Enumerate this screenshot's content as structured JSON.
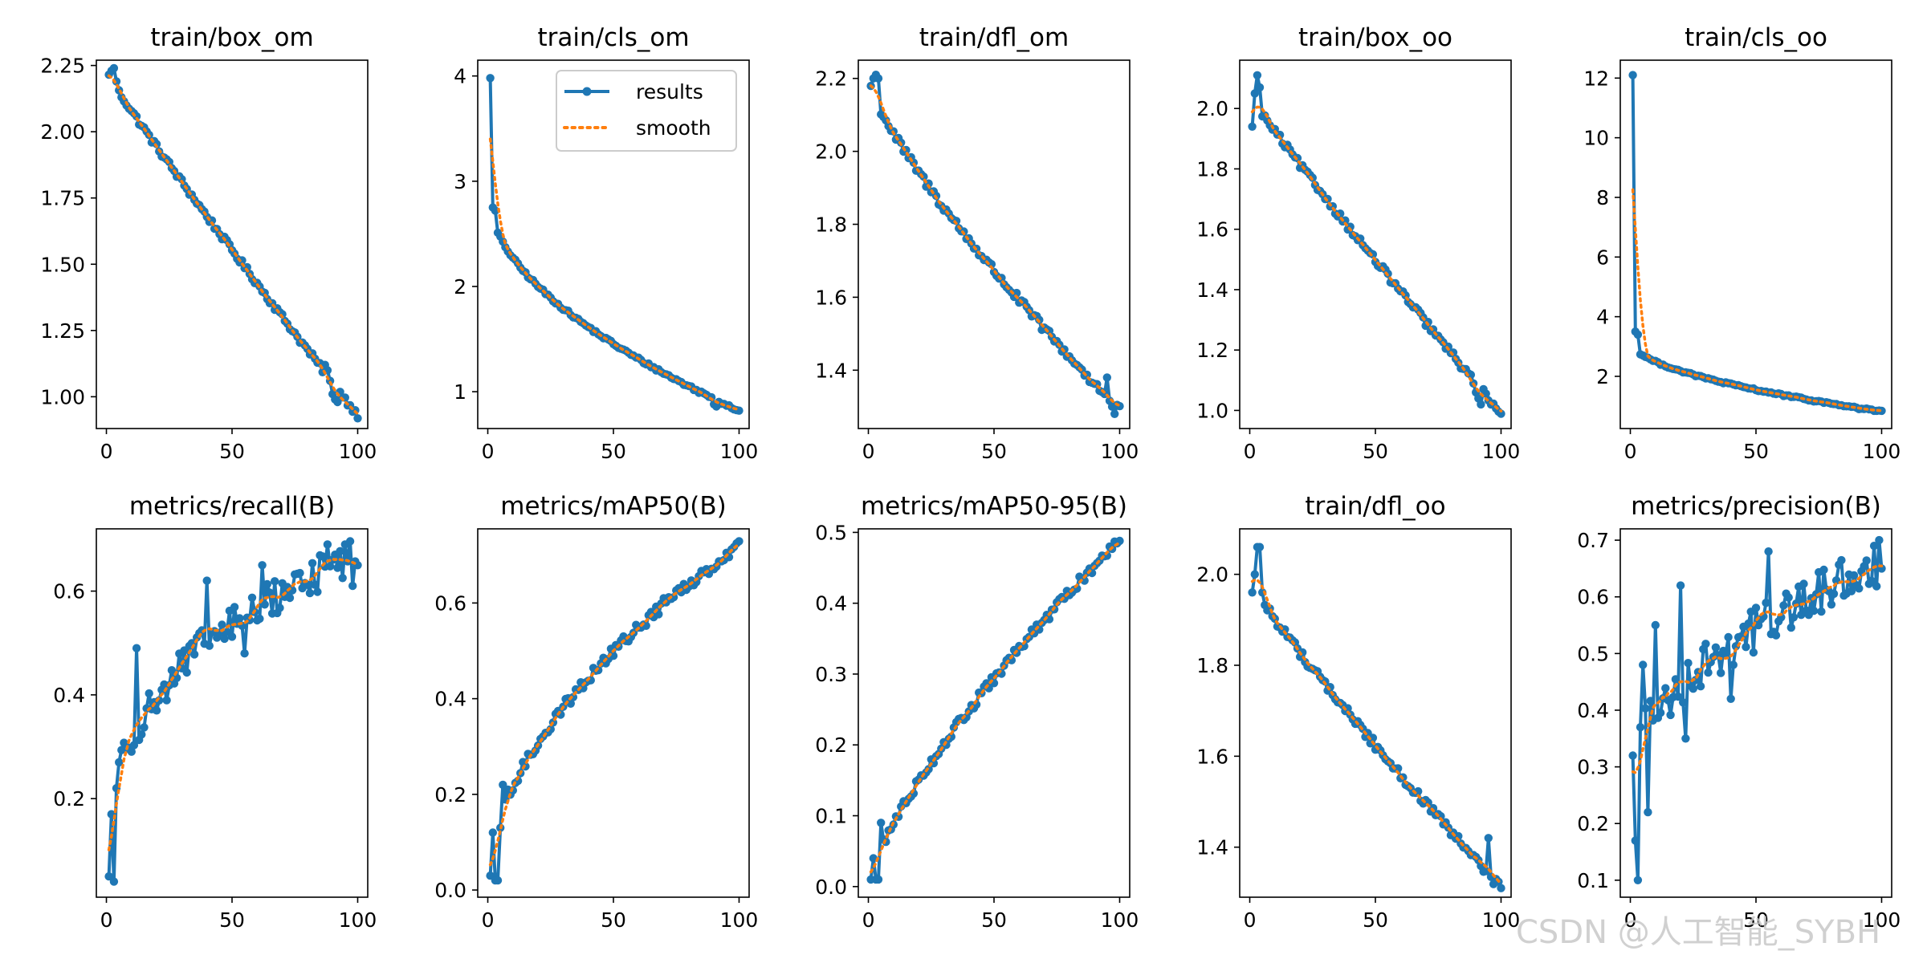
{
  "colors": {
    "results": "#1f77b4",
    "smooth": "#ff7f0e",
    "axes": "#000000",
    "background": "#ffffff"
  },
  "legend": {
    "results_label": "results",
    "smooth_label": "smooth",
    "placement": "upper-right of panel train/cls_om"
  },
  "watermark": "CSDN @人工智能_SYBH",
  "chart_data": [
    {
      "type": "line",
      "title": "train/box_om",
      "xlabel": "",
      "ylabel": "",
      "xlim": [
        -4,
        104
      ],
      "ylim": [
        0.88,
        2.27
      ],
      "xticks": [
        0,
        50,
        100
      ],
      "yticks": [
        1.0,
        1.25,
        1.5,
        1.75,
        2.0,
        2.25
      ],
      "ytick_labels": [
        "1.00",
        "1.25",
        "1.50",
        "1.75",
        "2.00",
        "2.25"
      ],
      "series": [
        {
          "name": "results",
          "gen": {
            "kind": "pow",
            "start": 2.21,
            "end": 0.93,
            "p": 0.95,
            "noise": 0.012,
            "bumps": [
              [
                2,
                2.23
              ],
              [
                3,
                2.24
              ],
              [
                4,
                2.19
              ],
              [
                87,
                1.12
              ],
              [
                88,
                1.1
              ],
              [
                89,
                1.06
              ],
              [
                90,
                1.01
              ],
              [
                91,
                0.99
              ],
              [
                92,
                0.98
              ]
            ]
          }
        }
      ]
    },
    {
      "type": "line",
      "title": "train/cls_om",
      "xlabel": "",
      "ylabel": "",
      "xlim": [
        -4,
        104
      ],
      "ylim": [
        0.65,
        4.15
      ],
      "xticks": [
        0,
        50,
        100
      ],
      "yticks": [
        1,
        2,
        3,
        4
      ],
      "ytick_labels": [
        "1",
        "2",
        "3",
        "4"
      ],
      "series": [
        {
          "name": "results",
          "gen": {
            "kind": "pow",
            "start": 2.8,
            "end": 0.82,
            "p": 0.55,
            "noise": 0.015,
            "bumps": [
              [
                1,
                3.98
              ],
              [
                2,
                2.75
              ],
              [
                3,
                2.72
              ],
              [
                90,
                0.88
              ],
              [
                91,
                0.86
              ]
            ]
          }
        }
      ]
    },
    {
      "type": "line",
      "title": "train/dfl_om",
      "xlabel": "",
      "ylabel": "",
      "xlim": [
        -4,
        104
      ],
      "ylim": [
        1.24,
        2.25
      ],
      "xticks": [
        0,
        50,
        100
      ],
      "yticks": [
        1.4,
        1.6,
        1.8,
        2.0,
        2.2
      ],
      "ytick_labels": [
        "1.4",
        "1.6",
        "1.8",
        "2.0",
        "2.2"
      ],
      "series": [
        {
          "name": "results",
          "gen": {
            "kind": "pow",
            "start": 2.18,
            "end": 1.29,
            "p": 0.8,
            "noise": 0.012,
            "bumps": [
              [
                2,
                2.2
              ],
              [
                3,
                2.21
              ],
              [
                4,
                2.2
              ],
              [
                95,
                1.38
              ],
              [
                97,
                1.3
              ],
              [
                98,
                1.28
              ]
            ]
          }
        }
      ]
    },
    {
      "type": "line",
      "title": "train/box_oo",
      "xlabel": "",
      "ylabel": "",
      "xlim": [
        -4,
        104
      ],
      "ylim": [
        0.94,
        2.16
      ],
      "xticks": [
        0,
        50,
        100
      ],
      "yticks": [
        1.0,
        1.2,
        1.4,
        1.6,
        1.8,
        2.0
      ],
      "ytick_labels": [
        "1.0",
        "1.2",
        "1.4",
        "1.6",
        "1.8",
        "2.0"
      ],
      "series": [
        {
          "name": "results",
          "gen": {
            "kind": "pow",
            "start": 2.03,
            "end": 0.99,
            "p": 0.95,
            "noise": 0.012,
            "bumps": [
              [
                1,
                1.94
              ],
              [
                2,
                2.05
              ],
              [
                3,
                2.11
              ],
              [
                4,
                2.07
              ],
              [
                90,
                1.06
              ],
              [
                91,
                1.04
              ],
              [
                92,
                1.02
              ]
            ]
          }
        }
      ]
    },
    {
      "type": "line",
      "title": "train/cls_oo",
      "xlabel": "",
      "ylabel": "",
      "xlim": [
        -4,
        104
      ],
      "ylim": [
        0.25,
        12.6
      ],
      "xticks": [
        0,
        50,
        100
      ],
      "yticks": [
        2,
        4,
        6,
        8,
        10,
        12
      ],
      "ytick_labels": [
        "2",
        "4",
        "6",
        "8",
        "10",
        "12"
      ],
      "series": [
        {
          "name": "results",
          "gen": {
            "kind": "pow",
            "start": 3.1,
            "end": 0.82,
            "p": 0.55,
            "noise": 0.03,
            "bumps": [
              [
                1,
                12.1
              ],
              [
                2,
                3.5
              ],
              [
                3,
                3.4
              ],
              [
                90,
                0.95
              ],
              [
                91,
                0.9
              ]
            ]
          }
        }
      ]
    },
    {
      "type": "line",
      "title": "metrics/recall(B)",
      "xlabel": "",
      "ylabel": "",
      "xlim": [
        -4,
        104
      ],
      "ylim": [
        0.01,
        0.72
      ],
      "xticks": [
        0,
        50,
        100
      ],
      "yticks": [
        0.2,
        0.4,
        0.6
      ],
      "ytick_labels": [
        "0.2",
        "0.4",
        "0.6"
      ],
      "series": [
        {
          "name": "results",
          "gen": {
            "kind": "rise",
            "start": 0.05,
            "end": 0.67,
            "p": 0.35,
            "noise": 0.035,
            "bumps": [
              [
                1,
                0.05
              ],
              [
                2,
                0.17
              ],
              [
                3,
                0.04
              ],
              [
                4,
                0.22
              ],
              [
                5,
                0.27
              ],
              [
                12,
                0.49
              ],
              [
                20,
                0.37
              ],
              [
                40,
                0.62
              ],
              [
                55,
                0.48
              ],
              [
                62,
                0.65
              ],
              [
                88,
                0.69
              ],
              [
                95,
                0.69
              ],
              [
                98,
                0.61
              ],
              [
                100,
                0.65
              ]
            ]
          }
        }
      ]
    },
    {
      "type": "line",
      "title": "metrics/mAP50(B)",
      "xlabel": "",
      "ylabel": "",
      "xlim": [
        -4,
        104
      ],
      "ylim": [
        -0.015,
        0.755
      ],
      "xticks": [
        0,
        50,
        100
      ],
      "yticks": [
        0.0,
        0.2,
        0.4,
        0.6
      ],
      "ytick_labels": [
        "0.0",
        "0.2",
        "0.4",
        "0.6"
      ],
      "series": [
        {
          "name": "results",
          "gen": {
            "kind": "rise",
            "start": 0.03,
            "end": 0.72,
            "p": 0.55,
            "noise": 0.012,
            "bumps": [
              [
                1,
                0.03
              ],
              [
                2,
                0.12
              ],
              [
                3,
                0.02
              ],
              [
                4,
                0.02
              ],
              [
                5,
                0.13
              ],
              [
                6,
                0.22
              ],
              [
                8,
                0.21
              ],
              [
                70,
                0.61
              ]
            ]
          }
        }
      ]
    },
    {
      "type": "line",
      "title": "metrics/mAP50-95(B)",
      "xlabel": "",
      "ylabel": "",
      "xlim": [
        -4,
        104
      ],
      "ylim": [
        -0.015,
        0.505
      ],
      "xticks": [
        0,
        50,
        100
      ],
      "yticks": [
        0.0,
        0.1,
        0.2,
        0.3,
        0.4,
        0.5
      ],
      "ytick_labels": [
        "0.0",
        "0.1",
        "0.2",
        "0.3",
        "0.4",
        "0.5"
      ],
      "series": [
        {
          "name": "results",
          "gen": {
            "kind": "rise",
            "start": 0.01,
            "end": 0.49,
            "p": 0.75,
            "noise": 0.007,
            "bumps": [
              [
                1,
                0.01
              ],
              [
                2,
                0.04
              ],
              [
                3,
                0.01
              ],
              [
                4,
                0.01
              ],
              [
                5,
                0.09
              ]
            ]
          }
        }
      ]
    },
    {
      "type": "line",
      "title": "train/dfl_oo",
      "xlabel": "",
      "ylabel": "",
      "xlim": [
        -4,
        104
      ],
      "ylim": [
        1.29,
        2.1
      ],
      "xticks": [
        0,
        50,
        100
      ],
      "yticks": [
        1.4,
        1.6,
        1.8,
        2.0
      ],
      "ytick_labels": [
        "1.4",
        "1.6",
        "1.8",
        "2.0"
      ],
      "series": [
        {
          "name": "results",
          "gen": {
            "kind": "pow",
            "start": 1.98,
            "end": 1.31,
            "p": 0.9,
            "noise": 0.01,
            "bumps": [
              [
                1,
                1.96
              ],
              [
                2,
                2.0
              ],
              [
                3,
                2.06
              ],
              [
                4,
                2.06
              ],
              [
                5,
                1.96
              ],
              [
                95,
                1.42
              ],
              [
                98,
                1.33
              ],
              [
                100,
                1.31
              ]
            ]
          }
        }
      ]
    },
    {
      "type": "line",
      "title": "metrics/precision(B)",
      "xlabel": "",
      "ylabel": "",
      "xlim": [
        -4,
        104
      ],
      "ylim": [
        0.07,
        0.72
      ],
      "xticks": [
        0,
        50,
        100
      ],
      "yticks": [
        0.1,
        0.2,
        0.3,
        0.4,
        0.5,
        0.6,
        0.7
      ],
      "ytick_labels": [
        "0.1",
        "0.2",
        "0.3",
        "0.4",
        "0.5",
        "0.6",
        "0.7"
      ],
      "series": [
        {
          "name": "results",
          "gen": {
            "kind": "rise",
            "start": 0.3,
            "end": 0.66,
            "p": 0.55,
            "noise": 0.04,
            "bumps": [
              [
                1,
                0.32
              ],
              [
                2,
                0.17
              ],
              [
                3,
                0.1
              ],
              [
                4,
                0.37
              ],
              [
                5,
                0.48
              ],
              [
                7,
                0.22
              ],
              [
                10,
                0.55
              ],
              [
                20,
                0.62
              ],
              [
                22,
                0.35
              ],
              [
                40,
                0.42
              ],
              [
                55,
                0.68
              ],
              [
                97,
                0.69
              ],
              [
                99,
                0.7
              ],
              [
                100,
                0.65
              ]
            ]
          }
        }
      ]
    }
  ]
}
